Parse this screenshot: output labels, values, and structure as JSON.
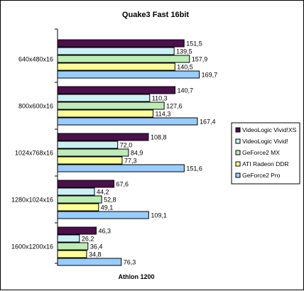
{
  "chart_data": {
    "type": "bar",
    "orientation": "horizontal",
    "title": "Quake3 Fast 16bit",
    "xlabel": "Athlon 1200",
    "ylabel": "",
    "categories": [
      "640x480x16",
      "800x600x16",
      "1024x768x16",
      "1280x1024x16",
      "1600x1200x16"
    ],
    "series": [
      {
        "name": "VideoLogic Vivid!XS",
        "color": "#4b0f4b",
        "values": [
          151.5,
          140.7,
          108.8,
          67.6,
          46.3
        ],
        "labels": [
          "151,5",
          "140,7",
          "108,8",
          "67,6",
          "46,3"
        ]
      },
      {
        "name": "VideoLogic Vivid!",
        "color": "#cdf0f5",
        "values": [
          139.5,
          110.3,
          72.0,
          44.2,
          26.2
        ],
        "labels": [
          "139,5",
          "110,3",
          "72,0",
          "44,2",
          "26,2"
        ]
      },
      {
        "name": "GeForce2 MX",
        "color": "#bdecb6",
        "values": [
          157.9,
          127.6,
          84.9,
          52.8,
          36.4
        ],
        "labels": [
          "157,9",
          "127,6",
          "84,9",
          "52,8",
          "36,4"
        ]
      },
      {
        "name": "ATI Radeon DDR",
        "color": "#ffff99",
        "values": [
          140.5,
          114.3,
          77.3,
          49.1,
          34.8
        ],
        "labels": [
          "140,5",
          "114,3",
          "77,3",
          "49,1",
          "34,8"
        ]
      },
      {
        "name": "GeForce2 Pro",
        "color": "#99ccff",
        "values": [
          169.7,
          167.4,
          151.6,
          109.1,
          76.3
        ],
        "labels": [
          "169,7",
          "167,4",
          "151,6",
          "109,1",
          "76,3"
        ]
      }
    ],
    "xlim": [
      0,
      185
    ],
    "grid": false,
    "legend_position": "right"
  }
}
